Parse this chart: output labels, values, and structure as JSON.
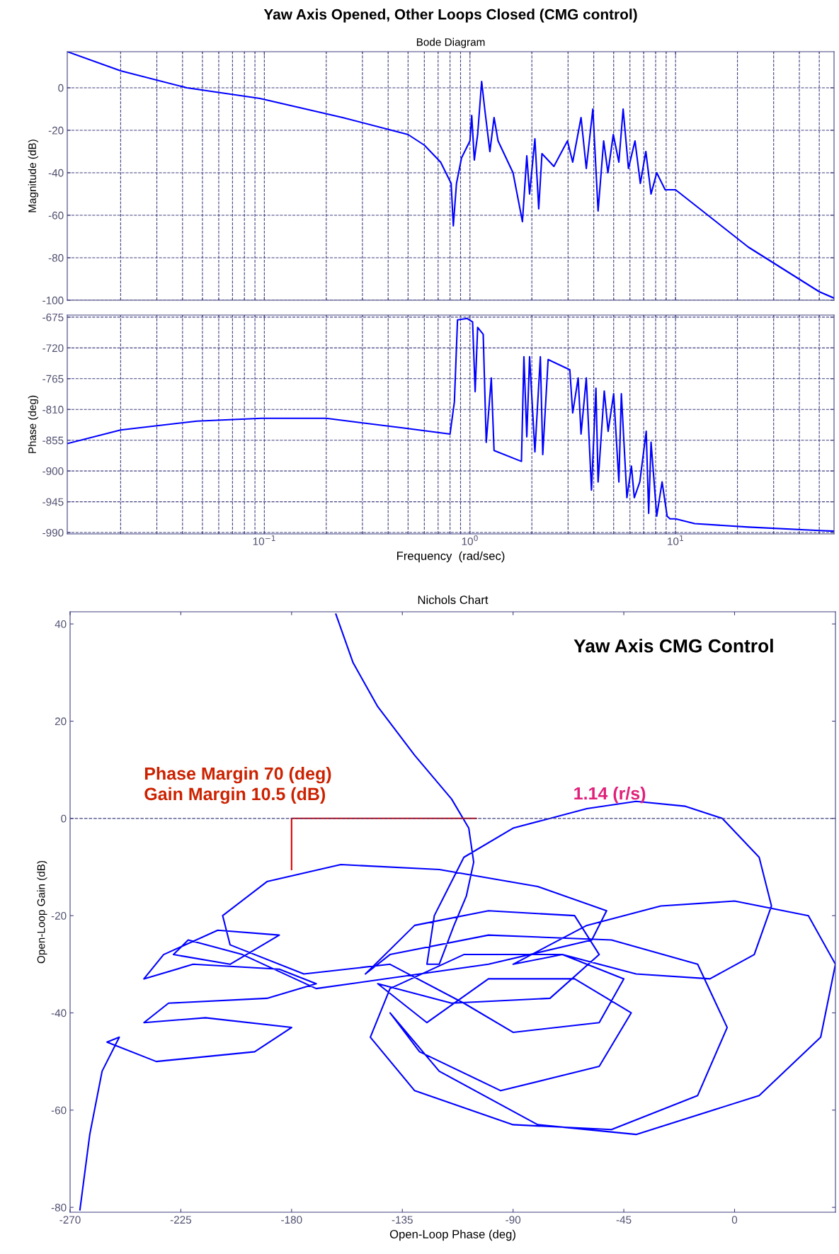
{
  "chart_data": [
    {
      "type": "line",
      "title": "Yaw Axis Opened, Other Loops Closed (CMG control)",
      "subtitle": "Bode Diagram",
      "ylabel": "Magnitude (dB)",
      "log": "x",
      "grid": true,
      "tick_labels": "y",
      "xlim": [
        0.011,
        59
      ],
      "xticks": [
        {
          "value": 0.1,
          "label": null
        },
        {
          "value": 1,
          "label": null
        },
        {
          "value": 10,
          "label": null
        }
      ],
      "ylim": [
        -100,
        17
      ],
      "yticks": [
        -100,
        -80,
        -60,
        -40,
        -20,
        0
      ],
      "series": [
        {
          "color": "#0000ff",
          "x": [
            0.011,
            0.02,
            0.042,
            0.095,
            0.24,
            0.5,
            0.6,
            0.72,
            0.81,
            0.83,
            0.86,
            0.91,
            1.0,
            1.02,
            1.05,
            1.09,
            1.14,
            1.18,
            1.25,
            1.31,
            1.37,
            1.62,
            1.8,
            1.89,
            1.95,
            2.07,
            2.16,
            2.24,
            2.56,
            2.98,
            3.16,
            3.47,
            3.68,
            3.96,
            4.2,
            4.47,
            4.69,
            4.98,
            5.3,
            5.56,
            5.9,
            6.35,
            6.74,
            7.17,
            7.6,
            8.1,
            8.9,
            10,
            22.6,
            50,
            59
          ],
          "values": [
            17,
            8,
            0,
            -5,
            -14,
            -22,
            -27,
            -35,
            -45,
            -65,
            -45,
            -33,
            -25,
            -13,
            -34,
            -22,
            3,
            -10,
            -30,
            -14,
            -25,
            -40,
            -63,
            -32,
            -50,
            -24,
            -57,
            -31,
            -37,
            -25,
            -35,
            -14,
            -38,
            -10,
            -58,
            -25,
            -40,
            -22,
            -35,
            -10,
            -38,
            -25,
            -45,
            -30,
            -50,
            -40,
            -48,
            -48,
            -75,
            -96,
            -99
          ]
        }
      ]
    },
    {
      "type": "line",
      "xlabel": "Frequency  (rad/sec)",
      "ylabel": "Phase (deg)",
      "log": "x",
      "grid": true,
      "xlim": [
        0.011,
        59
      ],
      "xticks": [
        {
          "value": 0.1,
          "label": "10$^{−1}$"
        },
        {
          "value": 1,
          "label": "10$^{0}$"
        },
        {
          "value": 10,
          "label": "10$^{1}$"
        }
      ],
      "ylim": [
        -992,
        -672
      ],
      "yticks": [
        -990,
        -945,
        -900,
        -855,
        -810,
        -765,
        -720,
        -675
      ],
      "series": [
        {
          "color": "#0000ff",
          "x": [
            0.011,
            0.02,
            0.047,
            0.097,
            0.2,
            0.47,
            0.8,
            0.84,
            0.87,
            0.97,
            1.03,
            1.06,
            1.09,
            1.16,
            1.2,
            1.27,
            1.31,
            1.78,
            1.83,
            1.89,
            1.95,
            2.07,
            2.2,
            2.26,
            2.4,
            3.06,
            3.16,
            3.36,
            3.47,
            3.68,
            3.9,
            4.1,
            4.2,
            4.5,
            4.7,
            5.0,
            5.3,
            5.45,
            5.8,
            6.1,
            6.3,
            6.7,
            7.2,
            7.4,
            7.6,
            8.1,
            8.6,
            9.1,
            9.4,
            10,
            12.4,
            22.6,
            50,
            59
          ],
          "values": [
            -860,
            -840,
            -827,
            -823,
            -823,
            -837,
            -846,
            -799,
            -679,
            -677,
            -682,
            -784,
            -690,
            -700,
            -858,
            -764,
            -870,
            -886,
            -733,
            -850,
            -733,
            -872,
            -733,
            -876,
            -737,
            -752,
            -815,
            -764,
            -846,
            -764,
            -928,
            -779,
            -916,
            -783,
            -842,
            -787,
            -916,
            -787,
            -939,
            -893,
            -939,
            -916,
            -842,
            -962,
            -858,
            -966,
            -916,
            -966,
            -970,
            -970,
            -977,
            -982,
            -987,
            -988
          ]
        }
      ]
    },
    {
      "type": "line",
      "title": "Nichols Chart",
      "xlabel": "Open-Loop Phase (deg)",
      "ylabel": "Open-Loop Gain (dB)",
      "xlim": [
        -270,
        41
      ],
      "xticks": [
        -270,
        -225,
        -180,
        -135,
        -90,
        -45,
        0
      ],
      "ylim": [
        -81,
        42.5
      ],
      "yticks": [
        -80,
        -60,
        -40,
        -20,
        0,
        20,
        40
      ],
      "ref_lines": [
        {
          "axis": "y",
          "value": 0,
          "line_style": "dashed",
          "color": "#404080"
        }
      ],
      "annotations": [
        "Yaw Axis CMG Control",
        {
          "text": "Phase Margin 70 (deg)\nGain Margin 10.5 (dB)",
          "x": -180,
          "y": 0
        },
        "1.14 (r/s)"
      ],
      "series": [
        {
          "color": "#0000ff",
          "x": [
            -162,
            -155,
            -145,
            -130,
            -115,
            -108,
            -106,
            -109,
            -114,
            -120,
            -125,
            -122,
            -110,
            -90,
            -60,
            -40,
            -20,
            -5,
            10,
            15,
            8,
            -10,
            -40,
            -70,
            -110,
            -140,
            -148,
            -130,
            -90,
            -50,
            -15,
            -3,
            -15,
            -50,
            -100,
            -140,
            -150,
            -130,
            -100,
            -65,
            -55,
            -75,
            -115,
            -145,
            -125,
            -100,
            -65,
            -42,
            -55,
            -95,
            -128,
            -140,
            -120,
            -80,
            -40,
            10,
            35,
            41,
            30,
            0,
            -30,
            -60,
            -90,
            -70,
            -45,
            -55,
            -90,
            -110,
            -140,
            -175,
            -205,
            -208,
            -190,
            -160,
            -120,
            -80,
            -52,
            -58,
            -100,
            -170,
            -200,
            -222,
            -228,
            -205,
            -185,
            -210,
            -232,
            -240,
            -220,
            -185,
            -170,
            -190,
            -230,
            -240,
            -215,
            -180,
            -195,
            -235,
            -255,
            -250,
            -257,
            -262,
            -266
          ],
          "values": [
            42,
            32,
            23,
            13,
            4,
            -2,
            -9,
            -16,
            -22,
            -30,
            -30,
            -20,
            -8,
            -2,
            2,
            3.5,
            2.5,
            0,
            -8,
            -18,
            -28,
            -33,
            -32,
            -28,
            -28,
            -35,
            -45,
            -56,
            -63,
            -64,
            -57,
            -43,
            -30,
            -25,
            -24,
            -28,
            -32,
            -22,
            -19,
            -20,
            -28,
            -37,
            -38,
            -34,
            -42,
            -33,
            -33,
            -40,
            -51,
            -56,
            -48,
            -40,
            -52,
            -63,
            -65,
            -57,
            -45,
            -30,
            -20,
            -17,
            -18,
            -22,
            -30,
            -28,
            -33,
            -42,
            -44,
            -38,
            -30,
            -32,
            -26,
            -20,
            -13,
            -9.5,
            -10.5,
            -14,
            -19,
            -25,
            -30,
            -35,
            -28,
            -25,
            -28,
            -30,
            -24,
            -23,
            -28,
            -33,
            -30,
            -31,
            -34,
            -37,
            -38,
            -42,
            -41,
            -43,
            -48,
            -50,
            -46,
            -45,
            -52,
            -65,
            -80.5
          ]
        },
        {
          "color": "#e00000",
          "x": [
            -180,
            -180,
            -105
          ],
          "values": [
            -10.5,
            0,
            0
          ]
        }
      ]
    }
  ]
}
